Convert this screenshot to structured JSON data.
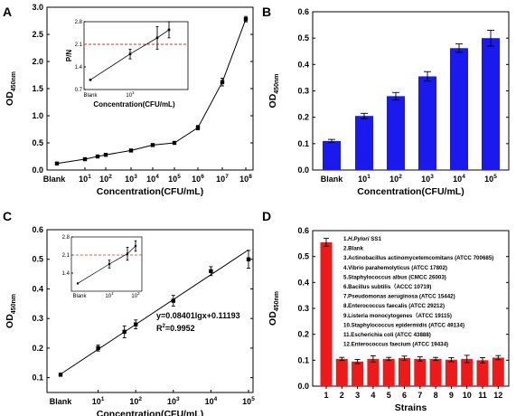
{
  "chart_data": [
    {
      "panel": "A",
      "type": "line",
      "ylabel_main": "OD",
      "ylabel_sub": "450nm",
      "xlabel": "Concentration(CFU/mL)",
      "ylim": [
        0,
        3.0
      ],
      "yticks": [
        "0.0",
        "0.5",
        "1.0",
        "1.5",
        "2.0",
        "2.5",
        "3.0"
      ],
      "xtick_blank": "Blank",
      "xtick_exponents": [
        "1",
        "2",
        "3",
        "4",
        "5",
        "6",
        "7",
        "8"
      ],
      "series": [
        {
          "x": [
            "Blank",
            "1e1",
            "5e1",
            "1e2",
            "1e3",
            "1e4",
            "1e5",
            "1e6",
            "1e7",
            "1e8"
          ],
          "values": [
            0.12,
            0.2,
            0.25,
            0.28,
            0.36,
            0.46,
            0.5,
            0.78,
            1.62,
            2.78
          ],
          "errors": [
            0.01,
            0.01,
            0.02,
            0.02,
            0.02,
            0.02,
            0.02,
            0.04,
            0.07,
            0.05
          ]
        }
      ],
      "inset": {
        "ylabel": "P/N",
        "xlabel": "Concentration(CFU/mL)",
        "ylim": [
          0.7,
          2.8
        ],
        "yticks": [
          "0.7",
          "1.4",
          "2.1",
          "2.8"
        ],
        "xtick_blank": "Blank",
        "xtick_exponents": [
          "1"
        ],
        "threshold": 2.1,
        "x": [
          "Blank",
          "1e1",
          "5e1",
          "1e2"
        ],
        "values": [
          1.0,
          1.8,
          2.3,
          2.55
        ],
        "errors": [
          0.0,
          0.15,
          0.35,
          0.25
        ]
      }
    },
    {
      "panel": "B",
      "type": "bar",
      "ylabel_main": "OD",
      "ylabel_sub": "450nm",
      "xlabel": "Concentration(CFU/mL)",
      "ylim": [
        0,
        0.6
      ],
      "yticks": [
        "0.0",
        "0.1",
        "0.2",
        "0.3",
        "0.4",
        "0.5",
        "0.6"
      ],
      "categories": [
        "Blank",
        "1",
        "2",
        "3",
        "4",
        "5"
      ],
      "values": [
        0.11,
        0.205,
        0.28,
        0.355,
        0.462,
        0.5
      ],
      "errors": [
        0.006,
        0.01,
        0.014,
        0.018,
        0.016,
        0.03
      ],
      "bar_color": "#1a1aee"
    },
    {
      "panel": "C",
      "type": "scatter",
      "ylabel_main": "OD",
      "ylabel_sub": "450nm",
      "xlabel": "Concentration(CFU/mL)",
      "ylim": [
        0.05,
        0.6
      ],
      "yticks": [
        "0.1",
        "0.2",
        "0.3",
        "0.4",
        "0.5",
        "0.6"
      ],
      "xtick_blank": "Blank",
      "xtick_exponents": [
        "1",
        "2",
        "3",
        "4",
        "5"
      ],
      "equation": "y=0.08401lgx+0.11193",
      "r2_label": "R",
      "r2_sup": "2",
      "r2_value": "=0.9952",
      "fit": {
        "slope": 0.08401,
        "intercept": 0.11193
      },
      "series": [
        {
          "x": [
            "Blank",
            "1e1",
            "5e1",
            "1e2",
            "1e3",
            "1e4",
            "1e5"
          ],
          "values": [
            0.11,
            0.2,
            0.255,
            0.28,
            0.36,
            0.46,
            0.5
          ],
          "errors": [
            0.005,
            0.01,
            0.02,
            0.015,
            0.018,
            0.015,
            0.03
          ]
        }
      ],
      "inset": {
        "yticks": [
          "1.4",
          "2.1",
          "2.8"
        ],
        "ylim": [
          0.7,
          2.8
        ],
        "xtick_blank": "Blank",
        "xtick_exponents": [
          "1",
          "2"
        ],
        "threshold": 2.1,
        "x": [
          "Blank",
          "1e1",
          "5e1",
          "1e2"
        ],
        "values": [
          1.0,
          1.75,
          2.15,
          2.45
        ],
        "errors": [
          0.0,
          0.15,
          0.25,
          0.2
        ]
      }
    },
    {
      "panel": "D",
      "type": "bar",
      "ylabel_main": "OD",
      "ylabel_sub": "450nm",
      "xlabel": "Strains",
      "ylim": [
        0,
        0.6
      ],
      "yticks": [
        "0.0",
        "0.1",
        "0.2",
        "0.3",
        "0.4",
        "0.5",
        "0.6"
      ],
      "categories": [
        "1",
        "2",
        "3",
        "4",
        "5",
        "6",
        "7",
        "8",
        "9",
        "10",
        "11",
        "12"
      ],
      "values": [
        0.555,
        0.105,
        0.095,
        0.105,
        0.105,
        0.108,
        0.105,
        0.105,
        0.102,
        0.105,
        0.1,
        0.11
      ],
      "errors": [
        0.015,
        0.006,
        0.008,
        0.012,
        0.006,
        0.008,
        0.008,
        0.006,
        0.008,
        0.014,
        0.01,
        0.008
      ],
      "bar_color": "#ee1a1a",
      "legend": [
        {
          "num": "1.",
          "name": "H.Pylori",
          "suffix": " SS1",
          "italic": true
        },
        {
          "num": "2.",
          "name": "Blank",
          "suffix": "",
          "italic": false
        },
        {
          "num": "3.",
          "name": "Actinobacillus actinomycetemcomitans (ATCC 700685)",
          "suffix": "",
          "italic": false
        },
        {
          "num": "4.",
          "name": "Vibrio parahemolyticus (ATCC 17802)",
          "suffix": "",
          "italic": false
        },
        {
          "num": "5.",
          "name": "Staphylococcus albus (CMCC 26003)",
          "suffix": "",
          "italic": false
        },
        {
          "num": "6.",
          "name": "Bacillus subtilis（ACCC 10719)",
          "suffix": "",
          "italic": false
        },
        {
          "num": "7.",
          "name": "Pseudomonas aeruginosa (ATCC 15442)",
          "suffix": "",
          "italic": false
        },
        {
          "num": "8.",
          "name": "Enterococcus faecalis (ATCC 29212)",
          "suffix": "",
          "italic": false
        },
        {
          "num": "9.",
          "name": "Listeria monocytogenes（ATCC 19115)",
          "suffix": "",
          "italic": false
        },
        {
          "num": "10.",
          "name": "Staphylococcus epidermidis (ATCC 49134)",
          "suffix": "",
          "italic": false
        },
        {
          "num": "11.",
          "name": "Escherichia coli (ATCC 43888)",
          "suffix": "",
          "italic": false
        },
        {
          "num": "12.",
          "name": "Enterococcus faecium (ATCC 19434)",
          "suffix": "",
          "italic": false
        }
      ]
    }
  ],
  "panel_labels": [
    "A",
    "B",
    "C",
    "D"
  ],
  "colors": {
    "threshold": "#cc3333",
    "axis": "#000000"
  }
}
